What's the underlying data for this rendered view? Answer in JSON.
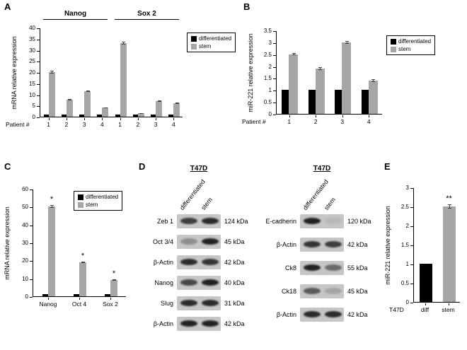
{
  "panels": {
    "a": {
      "label": "A"
    },
    "b": {
      "label": "B"
    },
    "c": {
      "label": "C"
    },
    "d": {
      "label": "D"
    },
    "e": {
      "label": "E"
    }
  },
  "colors": {
    "differentiated": "#000000",
    "stem": "#a6a6a6"
  },
  "chart_data": [
    {
      "id": "panel-a",
      "type": "bar",
      "group_titles": [
        {
          "label": "Nanog",
          "span": [
            0,
            4
          ]
        },
        {
          "label": "Sox 2",
          "span": [
            4,
            8
          ]
        }
      ],
      "ylabel": "mRNA relative expression",
      "xlabel": "Patient #",
      "ylim": [
        0,
        40
      ],
      "ytick_step": 5,
      "categories": [
        "1",
        "2",
        "3",
        "4",
        "1",
        "2",
        "3",
        "4"
      ],
      "legend": true,
      "series": [
        {
          "name": "differentiated",
          "color": "#000000",
          "values": [
            1,
            1,
            1,
            1,
            1,
            1,
            1,
            1
          ]
        },
        {
          "name": "stem",
          "color": "#a6a6a6",
          "values": [
            20,
            7.5,
            11.5,
            4,
            33,
            1.5,
            7,
            6
          ],
          "errors": [
            0.5,
            0.3,
            0.4,
            0.2,
            0.5,
            0.1,
            0.3,
            0.3
          ]
        }
      ]
    },
    {
      "id": "panel-b",
      "type": "bar",
      "ylabel": "miR-221 relative expression",
      "xlabel": "Patient #",
      "ylim": [
        0,
        3.5
      ],
      "ytick_step": 0.5,
      "categories": [
        "1",
        "2",
        "3",
        "4"
      ],
      "legend": true,
      "series": [
        {
          "name": "differentiated",
          "color": "#000000",
          "values": [
            1,
            1,
            1,
            1
          ]
        },
        {
          "name": "stem",
          "color": "#a6a6a6",
          "values": [
            2.5,
            1.9,
            3,
            1.4
          ],
          "errors": [
            0.05,
            0.05,
            0.05,
            0.05
          ]
        }
      ]
    },
    {
      "id": "panel-c",
      "type": "bar",
      "ylabel": "mRNA relative expression",
      "ylim": [
        0,
        60
      ],
      "ytick_step": 10,
      "categories": [
        "Nanog",
        "Oct 4",
        "Sox 2"
      ],
      "legend": true,
      "series": [
        {
          "name": "differentiated",
          "color": "#000000",
          "values": [
            1,
            1,
            1
          ]
        },
        {
          "name": "stem",
          "color": "#a6a6a6",
          "values": [
            50,
            19,
            9
          ],
          "errors": [
            0.8,
            0.5,
            0.4
          ],
          "annotations": [
            "*",
            "*",
            "*"
          ]
        }
      ]
    },
    {
      "id": "panel-e",
      "type": "bar",
      "ylabel": "miR-221 relative expression",
      "xlabel": "T47D",
      "ylim": [
        0,
        3
      ],
      "ytick_step": 0.5,
      "categories": [
        "diff",
        "stem"
      ],
      "legend": false,
      "series": [
        {
          "name": "",
          "color": [
            "#000000",
            "#a6a6a6"
          ],
          "values": [
            1,
            2.5
          ],
          "errors": [
            0,
            0.05
          ],
          "annotations": [
            "",
            "**"
          ]
        }
      ]
    }
  ],
  "blots": {
    "left": {
      "title": "T47D",
      "lanes": [
        "differentiated",
        "stem"
      ],
      "rows": [
        {
          "label": "Zeb 1",
          "kda": "124 kDa",
          "bands": [
            0.75,
            0.85
          ]
        },
        {
          "label": "Oct 3/4",
          "kda": "45 kDa",
          "bands": [
            0.3,
            0.9
          ]
        },
        {
          "label": "β-Actin",
          "kda": "42 kDa",
          "bands": [
            0.85,
            0.8
          ]
        },
        {
          "label": "Nanog",
          "kda": "40 kDa",
          "bands": [
            0.7,
            0.9
          ]
        },
        {
          "label": "Slug",
          "kda": "31 kDa",
          "bands": [
            0.85,
            0.85
          ]
        },
        {
          "label": "β-Actin",
          "kda": "42 kDa",
          "bands": [
            0.9,
            0.9
          ]
        }
      ]
    },
    "right": {
      "title": "T47D",
      "lanes": [
        "differentiated",
        "stem"
      ],
      "rows": [
        {
          "label": "E-cadherin",
          "kda": "120 kDa",
          "bands": [
            0.9,
            0.08
          ]
        },
        {
          "label": "β-Actin",
          "kda": "42 kDa",
          "bands": [
            0.8,
            0.75
          ]
        },
        {
          "label": "Ck8",
          "kda": "55 kDa",
          "bands": [
            0.9,
            0.5
          ]
        },
        {
          "label": "Ck18",
          "kda": "45 kDa",
          "bands": [
            0.6,
            0.18
          ]
        },
        {
          "label": "β-Actin",
          "kda": "42 kDa",
          "bands": [
            0.85,
            0.85
          ]
        }
      ]
    }
  }
}
